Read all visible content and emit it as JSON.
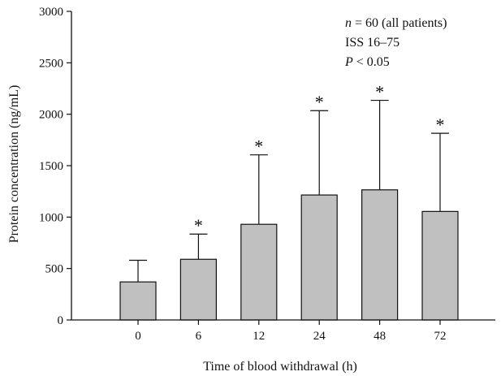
{
  "chart_data": {
    "type": "bar",
    "title": "",
    "xlabel": "Time of blood withdrawal (h)",
    "ylabel": "Protein concentration (ng/mL)",
    "categories": [
      "0",
      "6",
      "12",
      "24",
      "48",
      "72"
    ],
    "values": [
      370,
      590,
      930,
      1215,
      1265,
      1055
    ],
    "error_upper": [
      580,
      835,
      1605,
      2035,
      2135,
      1815
    ],
    "significant": [
      false,
      true,
      true,
      true,
      true,
      true
    ],
    "significance_marker": "*",
    "ylim": [
      0,
      3000
    ],
    "yticks": [
      0,
      500,
      1000,
      1500,
      2000,
      2500,
      3000
    ],
    "grid": false,
    "bar_color": "#c0c0c0",
    "annotation": {
      "n_var": "n",
      "n_rest": " = 60 (all patients)",
      "iss": "ISS 16–75",
      "p_var": "P",
      "p_rest": " < 0.05"
    }
  }
}
